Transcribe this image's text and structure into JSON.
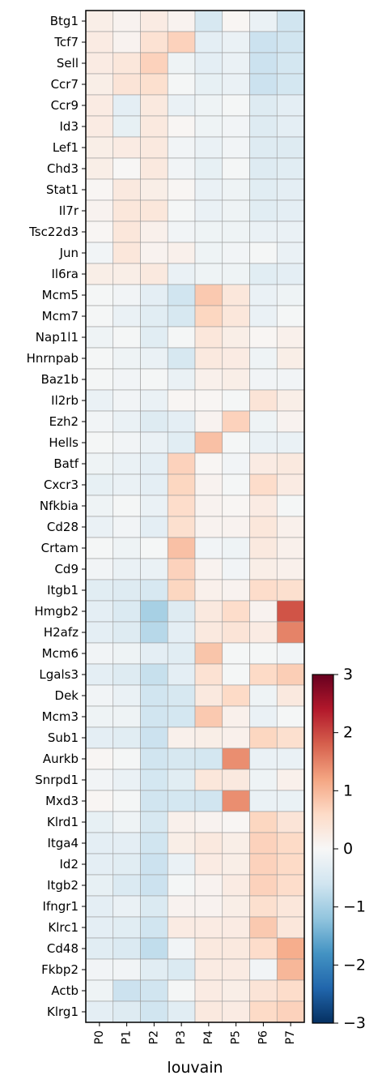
{
  "chart_data": {
    "type": "heatmap",
    "xlabel": "louvain",
    "ylabel": "",
    "colormap": "RdBu_r",
    "colorbar": {
      "min": -3,
      "max": 3,
      "ticks": [
        "3",
        "2",
        "1",
        "0",
        "−1",
        "−2",
        "−3"
      ],
      "tick_values": [
        3,
        2,
        1,
        0,
        -1,
        -2,
        -3
      ]
    },
    "groups": [
      "P0",
      "P1",
      "P2",
      "P3",
      "P4",
      "P5",
      "P6",
      "P7"
    ],
    "genes": [
      "Btg1",
      "Tcf7",
      "Sell",
      "Ccr7",
      "Ccr9",
      "Id3",
      "Lef1",
      "Chd3",
      "Stat1",
      "Il7r",
      "Tsc22d3",
      "Jun",
      "Il6ra",
      "Mcm5",
      "Mcm7",
      "Nap1l1",
      "Hnrnpab",
      "Baz1b",
      "Il2rb",
      "Ezh2",
      "Hells",
      "Batf",
      "Cxcr3",
      "Nfkbia",
      "Cd28",
      "Crtam",
      "Cd9",
      "Itgb1",
      "Hmgb2",
      "H2afz",
      "Mcm6",
      "Lgals3",
      "Dek",
      "Mcm3",
      "Sub1",
      "Aurkb",
      "Snrpd1",
      "Mxd3",
      "Klrd1",
      "Itga4",
      "Id2",
      "Itgb2",
      "Ifngr1",
      "Klrc1",
      "Cd48",
      "Fkbp2",
      "Actb",
      "Klrg1"
    ],
    "values": [
      [
        0.2,
        0.1,
        0.25,
        0.1,
        -0.5,
        0.05,
        -0.2,
        -0.6
      ],
      [
        0.25,
        0.1,
        0.45,
        0.7,
        -0.3,
        -0.2,
        -0.65,
        -0.6
      ],
      [
        0.25,
        0.35,
        0.7,
        -0.15,
        -0.3,
        -0.2,
        -0.65,
        -0.55
      ],
      [
        0.2,
        0.4,
        0.5,
        -0.05,
        -0.25,
        -0.2,
        -0.65,
        -0.55
      ],
      [
        0.25,
        -0.3,
        0.3,
        -0.2,
        -0.15,
        -0.05,
        -0.4,
        -0.3
      ],
      [
        0.25,
        -0.25,
        0.3,
        0.05,
        -0.15,
        -0.1,
        -0.4,
        -0.3
      ],
      [
        0.2,
        0.25,
        0.3,
        -0.1,
        -0.2,
        -0.1,
        -0.4,
        -0.4
      ],
      [
        0.2,
        0.02,
        0.3,
        -0.1,
        -0.25,
        -0.05,
        -0.4,
        -0.35
      ],
      [
        0.05,
        0.3,
        0.2,
        0.05,
        -0.2,
        -0.15,
        -0.35,
        -0.3
      ],
      [
        0.1,
        0.35,
        0.35,
        -0.05,
        -0.2,
        -0.15,
        -0.35,
        -0.3
      ],
      [
        0.05,
        0.35,
        0.15,
        -0.1,
        -0.15,
        -0.15,
        -0.2,
        -0.2
      ],
      [
        -0.1,
        0.35,
        0.1,
        0.15,
        -0.15,
        -0.1,
        -0.05,
        -0.2
      ],
      [
        0.2,
        0.2,
        0.3,
        -0.2,
        -0.15,
        -0.15,
        -0.35,
        -0.3
      ],
      [
        -0.05,
        -0.1,
        -0.3,
        -0.6,
        0.8,
        0.35,
        -0.2,
        -0.15
      ],
      [
        -0.05,
        -0.2,
        -0.35,
        -0.5,
        0.65,
        0.35,
        -0.2,
        -0.05
      ],
      [
        -0.15,
        -0.05,
        -0.35,
        -0.05,
        0.35,
        0.2,
        0.05,
        0.15
      ],
      [
        -0.05,
        -0.15,
        -0.2,
        -0.5,
        0.3,
        0.25,
        -0.15,
        0.2
      ],
      [
        -0.05,
        -0.1,
        -0.05,
        -0.2,
        0.15,
        0.2,
        -0.1,
        -0.1
      ],
      [
        -0.2,
        -0.1,
        -0.2,
        0.05,
        0.05,
        -0.05,
        0.4,
        0.2
      ],
      [
        -0.1,
        -0.2,
        -0.4,
        -0.3,
        0.1,
        0.7,
        -0.15,
        0.1
      ],
      [
        -0.05,
        -0.1,
        -0.2,
        -0.35,
        0.9,
        -0.05,
        -0.2,
        -0.2
      ],
      [
        -0.15,
        -0.2,
        -0.3,
        0.7,
        0.05,
        -0.1,
        0.25,
        0.3
      ],
      [
        -0.25,
        -0.2,
        -0.3,
        0.65,
        0.1,
        -0.05,
        0.55,
        0.25
      ],
      [
        -0.15,
        -0.05,
        -0.2,
        0.55,
        0.1,
        0.05,
        0.25,
        -0.05
      ],
      [
        -0.2,
        -0.1,
        -0.3,
        0.5,
        0.1,
        0.1,
        0.35,
        0.15
      ],
      [
        -0.05,
        -0.15,
        -0.05,
        0.9,
        -0.1,
        -0.15,
        0.3,
        0.15
      ],
      [
        -0.1,
        -0.2,
        -0.2,
        0.7,
        0.1,
        -0.1,
        0.2,
        0.15
      ],
      [
        -0.35,
        -0.4,
        -0.5,
        0.65,
        0.15,
        0.1,
        0.55,
        0.5
      ],
      [
        -0.3,
        -0.45,
        -1.0,
        -0.4,
        0.3,
        0.55,
        0.1,
        1.9
      ],
      [
        -0.3,
        -0.4,
        -0.85,
        -0.3,
        0.3,
        0.4,
        0.25,
        1.5
      ],
      [
        -0.1,
        -0.15,
        -0.3,
        -0.35,
        0.85,
        -0.05,
        -0.05,
        -0.1
      ],
      [
        -0.3,
        -0.4,
        -0.7,
        -0.3,
        0.45,
        -0.05,
        0.6,
        0.75
      ],
      [
        -0.1,
        -0.2,
        -0.6,
        -0.5,
        0.3,
        0.6,
        -0.15,
        0.3
      ],
      [
        -0.15,
        -0.15,
        -0.6,
        -0.55,
        0.8,
        0.15,
        -0.2,
        -0.05
      ],
      [
        -0.3,
        -0.35,
        -0.65,
        0.15,
        0.2,
        0.15,
        0.65,
        0.5
      ],
      [
        0.05,
        -0.05,
        -0.6,
        -0.5,
        -0.55,
        1.4,
        -0.2,
        -0.2
      ],
      [
        -0.1,
        -0.2,
        -0.55,
        -0.35,
        0.35,
        0.3,
        -0.15,
        0.15
      ],
      [
        0.05,
        -0.05,
        -0.6,
        -0.55,
        -0.6,
        1.4,
        -0.2,
        -0.2
      ],
      [
        -0.25,
        -0.15,
        -0.5,
        0.15,
        0.1,
        0.05,
        0.65,
        0.4
      ],
      [
        -0.3,
        -0.3,
        -0.6,
        0.2,
        0.3,
        0.2,
        0.7,
        0.6
      ],
      [
        -0.3,
        -0.35,
        -0.65,
        -0.2,
        0.25,
        0.2,
        0.7,
        0.6
      ],
      [
        -0.25,
        -0.45,
        -0.65,
        -0.05,
        0.1,
        0.25,
        0.7,
        0.55
      ],
      [
        -0.3,
        -0.2,
        -0.45,
        0.1,
        0.1,
        0.2,
        0.5,
        0.35
      ],
      [
        -0.3,
        -0.35,
        -0.6,
        0.25,
        0.25,
        0.25,
        0.8,
        0.35
      ],
      [
        -0.35,
        -0.45,
        -0.75,
        -0.1,
        0.3,
        0.3,
        0.55,
        1.1
      ],
      [
        -0.1,
        -0.1,
        -0.35,
        -0.45,
        0.25,
        0.25,
        -0.1,
        1.0
      ],
      [
        -0.15,
        -0.65,
        -0.6,
        -0.05,
        0.25,
        0.2,
        0.4,
        0.55
      ],
      [
        -0.3,
        -0.4,
        -0.6,
        -0.35,
        0.3,
        0.25,
        0.6,
        0.7
      ]
    ]
  }
}
